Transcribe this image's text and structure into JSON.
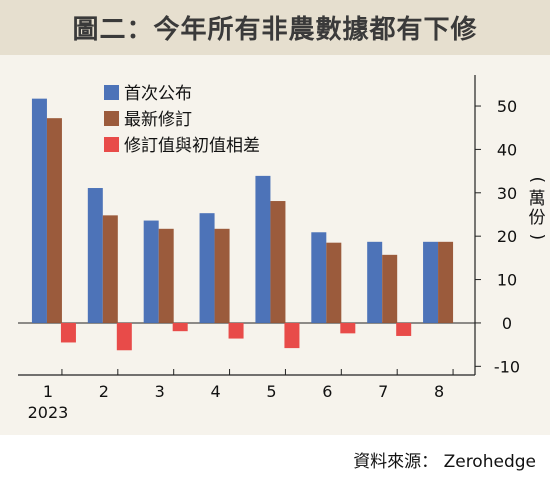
{
  "title": "圖二：今年所有非農數據都有下修",
  "source": "資料來源： Zerohedge",
  "chart_data": {
    "type": "bar",
    "categories": [
      "1",
      "2",
      "3",
      "4",
      "5",
      "6",
      "7",
      "8"
    ],
    "year_label": "2023",
    "ylabel": "(萬份)",
    "ylim": [
      -12,
      56
    ],
    "yticks": [
      -10,
      0,
      10,
      20,
      30,
      40,
      50
    ],
    "legend_position": "top-left",
    "grid": false,
    "series": [
      {
        "name": "首次公布",
        "color": "#4d73b8",
        "values": [
          51.7,
          31.1,
          23.6,
          25.3,
          33.9,
          20.9,
          18.7,
          18.7
        ]
      },
      {
        "name": "最新修訂",
        "color": "#9b5b3c",
        "values": [
          47.2,
          24.8,
          21.7,
          21.7,
          28.1,
          18.5,
          15.7,
          18.7
        ]
      },
      {
        "name": "修訂值與初值相差",
        "color": "#e84b49",
        "values": [
          -4.5,
          -6.3,
          -1.9,
          -3.6,
          -5.8,
          -2.4,
          -3.0,
          0
        ]
      }
    ]
  }
}
